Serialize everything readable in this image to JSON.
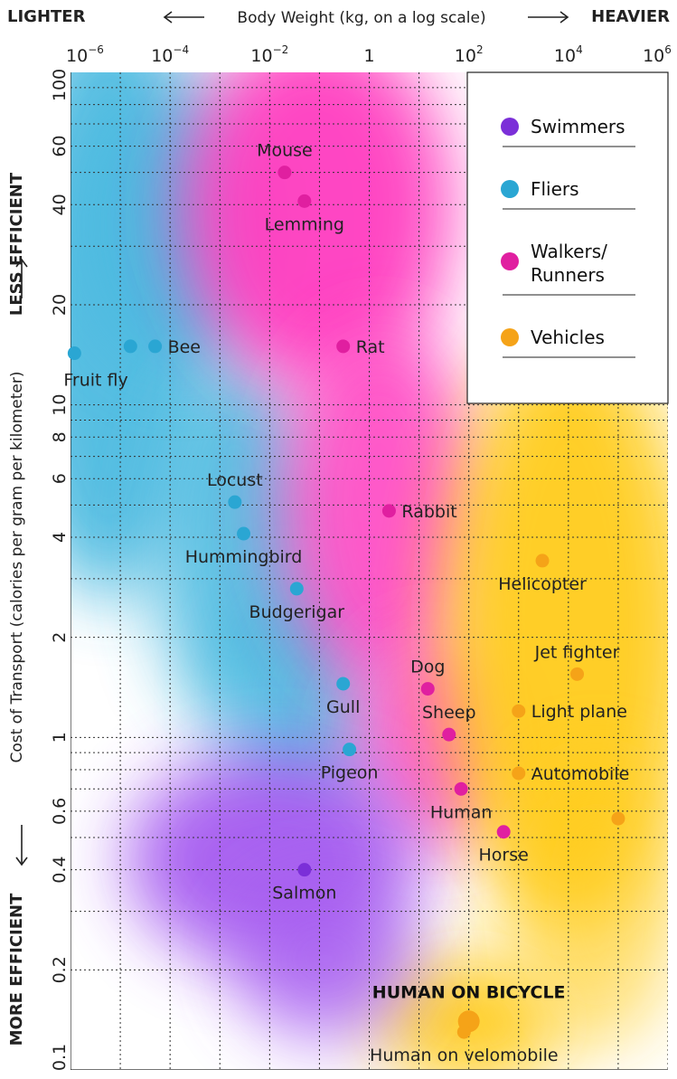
{
  "chart_data": {
    "type": "scatter",
    "title": "",
    "x_axis": {
      "label": "Body Weight (kg, on a log scale)",
      "left_label": "LIGHTER",
      "right_label": "HEAVIER",
      "scale": "log",
      "range": [
        1e-06,
        1000000.0
      ],
      "ticks": [
        {
          "value": 1e-06,
          "base": "10",
          "exp": "−6"
        },
        {
          "value": 0.0001,
          "base": "10",
          "exp": "−4"
        },
        {
          "value": 0.01,
          "base": "10",
          "exp": "−2"
        },
        {
          "value": 1,
          "base": "1",
          "exp": ""
        },
        {
          "value": 100.0,
          "base": "10",
          "exp": "2"
        },
        {
          "value": 10000.0,
          "base": "10",
          "exp": "4"
        },
        {
          "value": 1000000.0,
          "base": "10",
          "exp": "6"
        }
      ]
    },
    "y_axis": {
      "label": "Cost of Transport (calories per gram per kilometer)",
      "top_label": "LESS EFFICIENT",
      "bottom_label": "MORE EFFICIENT",
      "scale": "log",
      "range": [
        0.1,
        100
      ],
      "ticks": [
        {
          "value": 100,
          "label": "100"
        },
        {
          "value": 60,
          "label": "60"
        },
        {
          "value": 40,
          "label": "40"
        },
        {
          "value": 20,
          "label": "20"
        },
        {
          "value": 10,
          "label": "10"
        },
        {
          "value": 8,
          "label": "8"
        },
        {
          "value": 6,
          "label": "6"
        },
        {
          "value": 4,
          "label": "4"
        },
        {
          "value": 2,
          "label": "2"
        },
        {
          "value": 1,
          "label": "1"
        },
        {
          "value": 0.6,
          "label": "0.6"
        },
        {
          "value": 0.4,
          "label": "0.4"
        },
        {
          "value": 0.2,
          "label": "0.2"
        },
        {
          "value": 0.1,
          "label": "0.1"
        }
      ]
    },
    "legend": {
      "placement": "top-right",
      "entries": [
        {
          "key": "swimmers",
          "label": [
            "Swimmers"
          ]
        },
        {
          "key": "fliers",
          "label": [
            "Fliers"
          ]
        },
        {
          "key": "walkers",
          "label": [
            "Walkers/",
            "Runners"
          ]
        },
        {
          "key": "vehicles",
          "label": [
            "Vehicles"
          ]
        }
      ]
    },
    "colors": {
      "swimmers": "#7b2fd8",
      "fliers": "#2aa6d3",
      "walkers": "#e01fa0",
      "vehicles": "#f5a318",
      "swimmers_cloud": "#a65cf0",
      "fliers_cloud": "#45b7df",
      "walkers_cloud": "#ff3ec0",
      "vehicles_cloud": "#ffcc1a"
    },
    "points": [
      {
        "name": "Mouse",
        "group": "walkers",
        "x": 0.02,
        "y": 50,
        "label_pos": "above"
      },
      {
        "name": "Lemming",
        "group": "walkers",
        "x": 0.05,
        "y": 41,
        "label_pos": "below"
      },
      {
        "name": "Rat",
        "group": "walkers",
        "x": 0.3,
        "y": 15,
        "label_pos": "right"
      },
      {
        "name": "Fruit fly",
        "group": "fliers",
        "x": 1.2e-06,
        "y": 14.3,
        "label_pos": "below-right"
      },
      {
        "name": "",
        "group": "fliers",
        "x": 1.6e-05,
        "y": 15,
        "label_pos": "none"
      },
      {
        "name": "Bee",
        "group": "fliers",
        "x": 5e-05,
        "y": 15,
        "label_pos": "right"
      },
      {
        "name": "Locust",
        "group": "fliers",
        "x": 0.002,
        "y": 5.1,
        "label_pos": "above"
      },
      {
        "name": "Hummingbird",
        "group": "fliers",
        "x": 0.003,
        "y": 4.1,
        "label_pos": "below"
      },
      {
        "name": "Rabbit",
        "group": "walkers",
        "x": 2.5,
        "y": 4.8,
        "label_pos": "right"
      },
      {
        "name": "Budgerigar",
        "group": "fliers",
        "x": 0.035,
        "y": 2.8,
        "label_pos": "below"
      },
      {
        "name": "Helicopter",
        "group": "vehicles",
        "x": 3000,
        "y": 3.4,
        "label_pos": "below"
      },
      {
        "name": "Dog",
        "group": "walkers",
        "x": 15,
        "y": 1.4,
        "label_pos": "above"
      },
      {
        "name": "Gull",
        "group": "fliers",
        "x": 0.3,
        "y": 1.45,
        "label_pos": "below"
      },
      {
        "name": "Jet fighter",
        "group": "vehicles",
        "x": 15000,
        "y": 1.55,
        "label_pos": "above"
      },
      {
        "name": "Light plane",
        "group": "vehicles",
        "x": 1000,
        "y": 1.2,
        "label_pos": "right"
      },
      {
        "name": "Sheep",
        "group": "walkers",
        "x": 40,
        "y": 1.02,
        "label_pos": "above"
      },
      {
        "name": "Pigeon",
        "group": "fliers",
        "x": 0.4,
        "y": 0.92,
        "label_pos": "below"
      },
      {
        "name": "Automobile",
        "group": "vehicles",
        "x": 1000,
        "y": 0.78,
        "label_pos": "right"
      },
      {
        "name": "Human",
        "group": "walkers",
        "x": 70,
        "y": 0.7,
        "label_pos": "below"
      },
      {
        "name": "",
        "group": "vehicles",
        "x": 100000,
        "y": 0.57,
        "label_pos": "none"
      },
      {
        "name": "Horse",
        "group": "walkers",
        "x": 500,
        "y": 0.52,
        "label_pos": "below"
      },
      {
        "name": "Salmon",
        "group": "swimmers",
        "x": 0.05,
        "y": 0.4,
        "label_pos": "below"
      },
      {
        "name": "HUMAN ON BICYCLE",
        "group": "vehicles",
        "x": 100,
        "y": 0.14,
        "label_pos": "above",
        "bold": true
      },
      {
        "name": "Human on velomobile",
        "group": "vehicles",
        "x": 80,
        "y": 0.13,
        "label_pos": "below"
      }
    ]
  }
}
